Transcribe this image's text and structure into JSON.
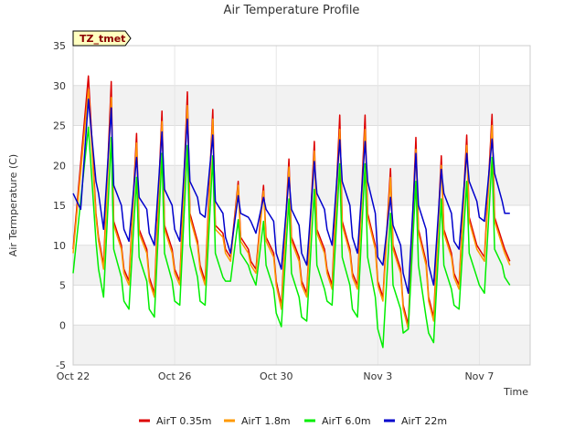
{
  "chart_data": {
    "type": "line",
    "title": "Air Temperature Profile",
    "xlabel": "Time",
    "ylabel": "Air Termperature (C)",
    "tag": "TZ_tmet",
    "ylim": [
      -5,
      35
    ],
    "yticks": [
      -5,
      0,
      5,
      10,
      15,
      20,
      25,
      30,
      35
    ],
    "xlim": [
      "Oct 22",
      "Nov 9"
    ],
    "xticks": [
      "Oct 22",
      "Oct 26",
      "Oct 30",
      "Nov 3",
      "Nov 7"
    ],
    "xtick_days": [
      0,
      4,
      8,
      12,
      16
    ],
    "grid": true,
    "legend_position": "bottom",
    "series": [
      {
        "name": "AirT 0.35m",
        "color": "#dd0000",
        "days": [
          0.0,
          0.6,
          0.9,
          1.0,
          1.2,
          1.5,
          1.6,
          1.9,
          2.0,
          2.2,
          2.5,
          2.6,
          2.9,
          3.0,
          3.2,
          3.5,
          3.6,
          3.9,
          4.0,
          4.2,
          4.5,
          4.6,
          4.9,
          5.0,
          5.2,
          5.5,
          5.6,
          5.9,
          6.0,
          6.2,
          6.5,
          6.6,
          6.9,
          7.0,
          7.2,
          7.5,
          7.6,
          7.9,
          8.0,
          8.2,
          8.5,
          8.6,
          8.9,
          9.0,
          9.2,
          9.5,
          9.6,
          9.9,
          10.0,
          10.2,
          10.5,
          10.6,
          10.9,
          11.0,
          11.2,
          11.5,
          11.6,
          11.9,
          12.0,
          12.2,
          12.5,
          12.6,
          12.9,
          13.0,
          13.2,
          13.5,
          13.6,
          13.9,
          14.0,
          14.2,
          14.5,
          14.6,
          14.9,
          15.0,
          15.2,
          15.5,
          15.6,
          15.9,
          16.0,
          16.2,
          16.5,
          16.6,
          16.9,
          17.0,
          17.2
        ],
        "values": [
          9.5,
          31.2,
          14.0,
          11.0,
          7.5,
          30.5,
          13.0,
          10.0,
          7.0,
          5.5,
          24.0,
          12.0,
          9.5,
          6.0,
          4.0,
          26.8,
          12.5,
          9.5,
          7.0,
          5.5,
          29.2,
          14.0,
          10.5,
          7.5,
          5.5,
          27.0,
          12.5,
          11.5,
          9.5,
          8.5,
          18.0,
          11.0,
          9.5,
          8.0,
          7.0,
          17.5,
          11.0,
          9.0,
          5.5,
          2.5,
          20.8,
          11.0,
          8.5,
          5.5,
          4.0,
          23.0,
          12.0,
          9.5,
          7.0,
          5.0,
          26.3,
          13.0,
          9.5,
          6.5,
          5.0,
          26.3,
          14.0,
          10.0,
          5.5,
          3.5,
          19.6,
          10.0,
          7.0,
          2.5,
          0.0,
          23.5,
          12.0,
          8.0,
          3.5,
          1.0,
          21.2,
          12.0,
          9.0,
          6.5,
          5.0,
          23.8,
          13.5,
          10.0,
          9.5,
          8.5,
          26.4,
          13.5,
          10.5,
          9.5,
          8.0
        ]
      },
      {
        "name": "AirT 1.8m",
        "color": "#ff9900",
        "days": [
          0.0,
          0.6,
          0.9,
          1.0,
          1.2,
          1.5,
          1.6,
          1.9,
          2.0,
          2.2,
          2.5,
          2.6,
          2.9,
          3.0,
          3.2,
          3.5,
          3.6,
          3.9,
          4.0,
          4.2,
          4.5,
          4.6,
          4.9,
          5.0,
          5.2,
          5.5,
          5.6,
          5.9,
          6.0,
          6.2,
          6.5,
          6.6,
          6.9,
          7.0,
          7.2,
          7.5,
          7.6,
          7.9,
          8.0,
          8.2,
          8.5,
          8.6,
          8.9,
          9.0,
          9.2,
          9.5,
          9.6,
          9.9,
          10.0,
          10.2,
          10.5,
          10.6,
          10.9,
          11.0,
          11.2,
          11.5,
          11.6,
          11.9,
          12.0,
          12.2,
          12.5,
          12.6,
          12.9,
          13.0,
          13.2,
          13.5,
          13.6,
          13.9,
          14.0,
          14.2,
          14.5,
          14.6,
          14.9,
          15.0,
          15.2,
          15.5,
          15.6,
          15.9,
          16.0,
          16.2,
          16.5,
          16.6,
          16.9,
          17.0,
          17.2
        ],
        "values": [
          9.0,
          29.5,
          13.5,
          10.5,
          7.0,
          28.5,
          12.5,
          9.5,
          6.5,
          5.0,
          22.8,
          11.5,
          9.0,
          5.5,
          3.5,
          25.5,
          12.0,
          9.0,
          6.5,
          5.0,
          27.5,
          13.5,
          10.0,
          7.0,
          5.0,
          25.8,
          12.0,
          11.0,
          9.0,
          8.0,
          17.5,
          10.5,
          9.0,
          7.5,
          6.5,
          16.8,
          10.5,
          8.5,
          5.0,
          2.0,
          19.8,
          10.5,
          8.0,
          5.0,
          3.5,
          21.8,
          11.5,
          9.0,
          6.5,
          4.5,
          24.5,
          12.5,
          9.0,
          6.0,
          4.5,
          24.5,
          13.5,
          9.5,
          5.0,
          3.0,
          18.5,
          9.5,
          6.5,
          2.0,
          -0.5,
          22.0,
          11.5,
          7.5,
          3.0,
          0.5,
          20.0,
          11.5,
          8.5,
          6.0,
          4.5,
          22.5,
          13.0,
          9.5,
          9.0,
          8.0,
          25.0,
          13.0,
          10.0,
          9.0,
          7.5
        ]
      },
      {
        "name": "AirT 6.0m",
        "color": "#00ee00",
        "days": [
          0.0,
          0.6,
          0.9,
          1.0,
          1.2,
          1.5,
          1.6,
          1.9,
          2.0,
          2.2,
          2.5,
          2.6,
          2.9,
          3.0,
          3.2,
          3.5,
          3.6,
          3.9,
          4.0,
          4.2,
          4.5,
          4.6,
          4.9,
          5.0,
          5.2,
          5.5,
          5.6,
          5.9,
          6.0,
          6.2,
          6.5,
          6.6,
          6.9,
          7.0,
          7.2,
          7.5,
          7.6,
          7.9,
          8.0,
          8.2,
          8.5,
          8.6,
          8.9,
          9.0,
          9.2,
          9.5,
          9.6,
          9.9,
          10.0,
          10.2,
          10.5,
          10.6,
          10.9,
          11.0,
          11.2,
          11.5,
          11.6,
          11.9,
          12.0,
          12.2,
          12.5,
          12.6,
          12.9,
          13.0,
          13.2,
          13.5,
          13.6,
          13.9,
          14.0,
          14.2,
          14.5,
          14.6,
          14.9,
          15.0,
          15.2,
          15.5,
          15.6,
          15.9,
          16.0,
          16.2,
          16.5,
          16.6,
          16.9,
          17.0,
          17.2
        ],
        "values": [
          6.5,
          24.8,
          10.5,
          7.0,
          3.5,
          23.5,
          9.5,
          6.0,
          3.0,
          2.0,
          18.5,
          8.5,
          5.5,
          2.0,
          1.0,
          21.5,
          9.0,
          5.5,
          3.0,
          2.5,
          22.5,
          10.0,
          6.0,
          3.0,
          2.5,
          21.2,
          9.0,
          6.0,
          5.5,
          5.5,
          13.2,
          9.0,
          7.5,
          6.5,
          5.0,
          13.0,
          7.5,
          4.5,
          1.5,
          -0.2,
          15.8,
          6.5,
          3.5,
          1.0,
          0.5,
          17.0,
          7.5,
          4.5,
          3.0,
          2.5,
          20.2,
          8.5,
          5.0,
          2.0,
          1.0,
          20.2,
          8.5,
          3.5,
          -0.5,
          -2.8,
          14.0,
          5.0,
          2.0,
          -1.0,
          -0.5,
          18.0,
          7.5,
          1.0,
          -1.0,
          -2.2,
          15.8,
          7.5,
          4.5,
          2.5,
          2.0,
          18.0,
          9.0,
          6.0,
          5.0,
          4.0,
          21.0,
          9.5,
          7.5,
          6.0,
          5.0
        ]
      },
      {
        "name": "AirT 22m",
        "color": "#0000cc",
        "days": [
          0.0,
          0.3,
          0.6,
          0.9,
          1.0,
          1.2,
          1.5,
          1.6,
          1.9,
          2.0,
          2.2,
          2.5,
          2.6,
          2.9,
          3.0,
          3.2,
          3.5,
          3.6,
          3.9,
          4.0,
          4.2,
          4.5,
          4.6,
          4.9,
          5.0,
          5.2,
          5.5,
          5.6,
          5.9,
          6.0,
          6.2,
          6.5,
          6.6,
          6.9,
          7.0,
          7.2,
          7.5,
          7.6,
          7.9,
          8.0,
          8.2,
          8.5,
          8.6,
          8.9,
          9.0,
          9.2,
          9.5,
          9.6,
          9.9,
          10.0,
          10.2,
          10.5,
          10.6,
          10.9,
          11.0,
          11.2,
          11.5,
          11.6,
          11.9,
          12.0,
          12.2,
          12.5,
          12.6,
          12.9,
          13.0,
          13.2,
          13.5,
          13.6,
          13.9,
          14.0,
          14.2,
          14.5,
          14.6,
          14.9,
          15.0,
          15.2,
          15.5,
          15.6,
          15.9,
          16.0,
          16.2,
          16.5,
          16.6,
          16.9,
          17.0,
          17.2
        ],
        "values": [
          16.5,
          14.5,
          28.3,
          18.0,
          16.5,
          12.0,
          27.2,
          17.5,
          15.0,
          12.0,
          10.5,
          21.0,
          16.0,
          14.5,
          11.5,
          10.0,
          24.2,
          17.0,
          15.0,
          12.0,
          10.5,
          25.8,
          18.0,
          16.0,
          14.0,
          13.5,
          23.8,
          15.5,
          14.0,
          11.0,
          9.0,
          16.2,
          14.0,
          13.5,
          13.0,
          11.5,
          16.0,
          14.5,
          13.0,
          9.0,
          7.0,
          18.5,
          14.5,
          12.5,
          9.0,
          7.5,
          20.5,
          16.5,
          14.5,
          12.0,
          10.0,
          23.2,
          18.0,
          15.0,
          11.0,
          9.0,
          23.0,
          18.0,
          14.0,
          8.5,
          7.5,
          16.0,
          12.5,
          10.0,
          6.5,
          4.0,
          21.5,
          15.0,
          12.0,
          7.5,
          5.0,
          19.5,
          16.5,
          14.0,
          10.5,
          9.5,
          21.5,
          18.0,
          15.5,
          13.5,
          13.0,
          23.3,
          19.0,
          15.5,
          14.0,
          14.0
        ]
      }
    ]
  }
}
